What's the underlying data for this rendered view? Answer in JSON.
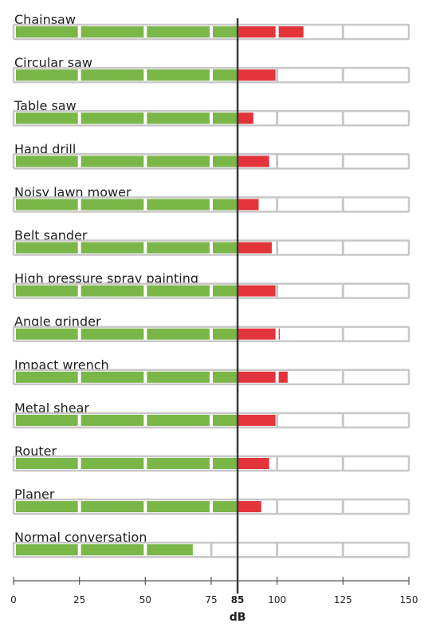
{
  "chart_data": {
    "type": "bar",
    "orientation": "horizontal",
    "title": "",
    "xlabel": "dB",
    "ylabel": "",
    "threshold": 85,
    "threshold_label": "85",
    "xlim": [
      0,
      150
    ],
    "xticks": [
      0,
      25,
      50,
      75,
      100,
      125,
      150
    ],
    "xtick_labels": [
      "0",
      "25",
      "50",
      "75",
      "100",
      "125",
      "150"
    ],
    "segment_size": 25,
    "categories": [
      "Chainsaw",
      "Circular saw",
      "Table saw",
      "Hand drill",
      "Noisy lawn mower",
      "Belt sander",
      "High pressure spray painting",
      "Angle grinder",
      "Impact wrench",
      "Metal shear",
      "Router",
      "Planer",
      "Normal conversation"
    ],
    "values": [
      110,
      100,
      91,
      97,
      93,
      98,
      100,
      101,
      104,
      100,
      97,
      94,
      68
    ],
    "colors": {
      "safe": "#7ab648",
      "over_limit": "#e3343c",
      "track": "#ffffff",
      "track_border": "#c8c8c8",
      "threshold_line": "#3a3a3a",
      "threshold_label": "#c0392b"
    }
  }
}
